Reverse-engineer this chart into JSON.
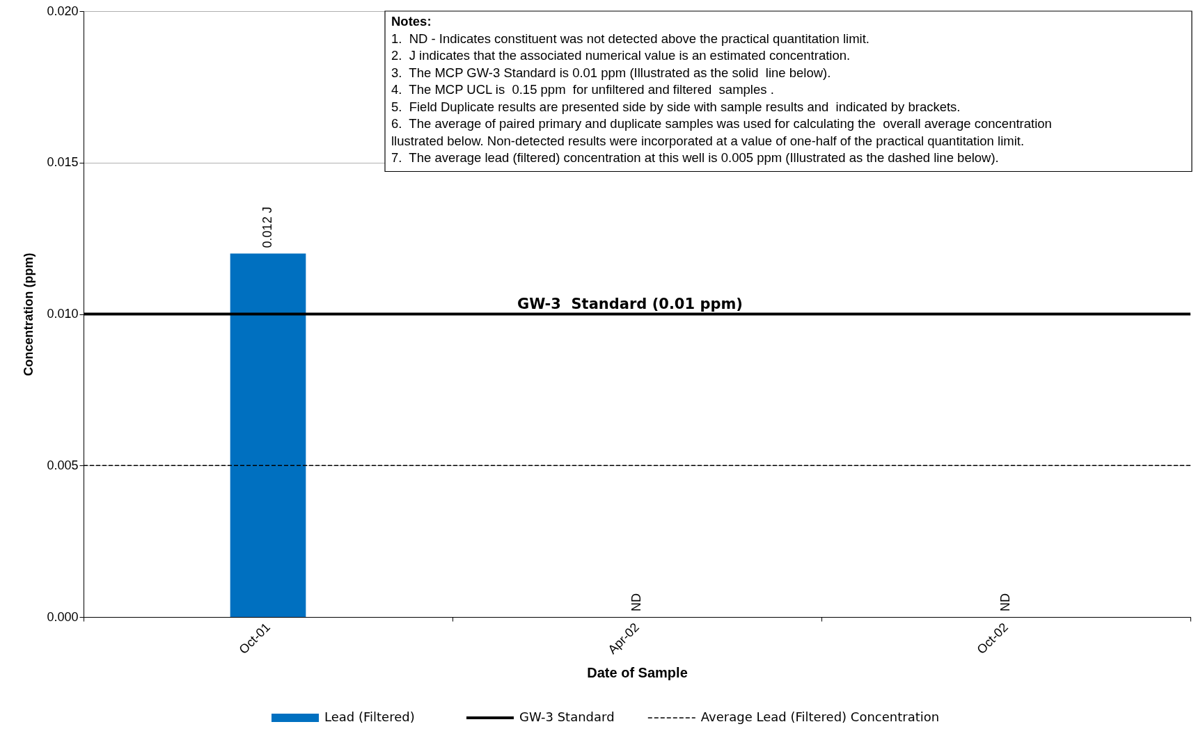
{
  "chart_data": {
    "type": "bar",
    "xlabel": "Date of Sample",
    "ylabel": "Concentration (ppm)",
    "categories": [
      "Oct-01",
      "Apr-02",
      "Oct-02"
    ],
    "series": [
      {
        "name": "Lead (Filtered)",
        "color": "#0070c0",
        "values": [
          0.012,
          null,
          null
        ],
        "value_labels": [
          "0.012 J",
          "ND",
          "ND"
        ]
      }
    ],
    "ref_lines": [
      {
        "axis": "y",
        "value": 0.01,
        "label": "GW-3 Standard",
        "color": "#000000",
        "line_style": "solid"
      },
      {
        "axis": "y",
        "value": 0.005,
        "label": "Average Lead (Filtered) Concentration",
        "color": "#000000",
        "line_style": "dashed"
      }
    ],
    "ylim": [
      0,
      0.02
    ],
    "yticks": [
      {
        "value": 0,
        "label": "0.000"
      },
      {
        "value": 0.005,
        "label": "0.005"
      },
      {
        "value": 0.01,
        "label": "0.010"
      },
      {
        "value": 0.015,
        "label": "0.015"
      },
      {
        "value": 0.02,
        "label": "0.020"
      }
    ],
    "grid": "y",
    "legend": "bottom",
    "annotations": [
      {
        "text": "GW-3  Standard (0.01 ppm)",
        "y": 0.01
      },
      "Notes:",
      "1.  ND - Indicates constituent was not detected above the practical quantitation limit.",
      "2.  J indicates that the associated numerical value is an estimated concentration.",
      "3.  The MCP GW-3 Standard is 0.01 ppm (Illustrated as the solid  line below).",
      "4.  The MCP UCL is  0.15 ppm  for unfiltered and filtered  samples .",
      "5.  Field Duplicate results are presented side by side with sample results and  indicated by brackets.",
      "6.  The average of paired primary and duplicate samples was used for calculating the  overall average concentration\n     llustrated below. Non-detected results were incorporated at a value of one-half of the practical quantitation limit.",
      "7.  The average lead (filtered) concentration at this well is 0.005 ppm (Illustrated as the dashed line below)."
    ]
  }
}
